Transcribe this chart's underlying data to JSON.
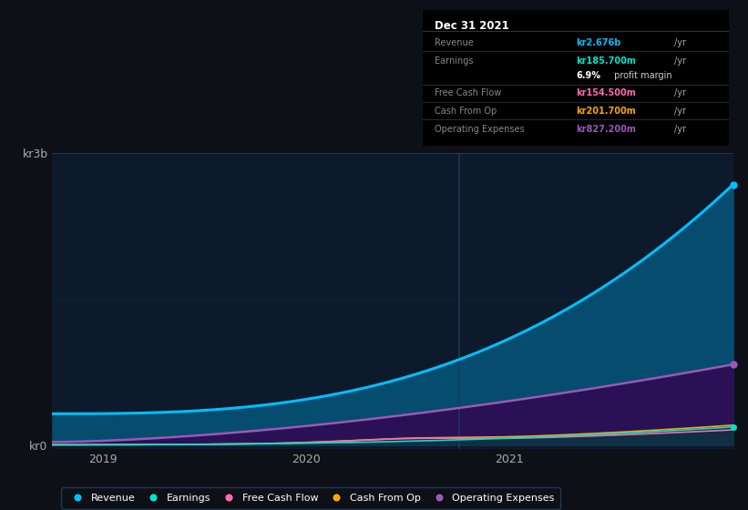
{
  "bg_color": "#0d1117",
  "chart_bg": "#0d1a2b",
  "grid_color": "#1e3a5f",
  "title": "Dec 31 2021",
  "table_rows": [
    {
      "label": "Revenue",
      "value": "kr2.676b",
      "unit": "/yr",
      "color": "#00bfff",
      "extra": null
    },
    {
      "label": "Earnings",
      "value": "kr185.700m",
      "unit": "/yr",
      "color": "#00e5cc",
      "extra": null
    },
    {
      "label": "",
      "value": "6.9%",
      "unit": null,
      "color": "#ffffff",
      "extra": " profit margin"
    },
    {
      "label": "Free Cash Flow",
      "value": "kr154.500m",
      "unit": "/yr",
      "color": "#ff69b4",
      "extra": null
    },
    {
      "label": "Cash From Op",
      "value": "kr201.700m",
      "unit": "/yr",
      "color": "#ffa500",
      "extra": null
    },
    {
      "label": "Operating Expenses",
      "value": "kr827.200m",
      "unit": "/yr",
      "color": "#9b59b6",
      "extra": null
    }
  ],
  "x_ticks": [
    "2019",
    "2020",
    "2021"
  ],
  "ylabel_kr0": "kr0",
  "ylabel_kr3b": "kr3b",
  "revenue_color": "#00bfff",
  "earnings_color": "#00e5cc",
  "cashflow_color": "#ff69b4",
  "cashop_color": "#ffa500",
  "opex_color": "#9b59b6",
  "revenue_fill": "#064c6e",
  "opex_fill": "#2a1155",
  "legend": [
    "Revenue",
    "Earnings",
    "Free Cash Flow",
    "Cash From Op",
    "Operating Expenses"
  ],
  "legend_colors": [
    "#00bfff",
    "#00e5cc",
    "#ff69b4",
    "#ffa500",
    "#9b59b6"
  ]
}
